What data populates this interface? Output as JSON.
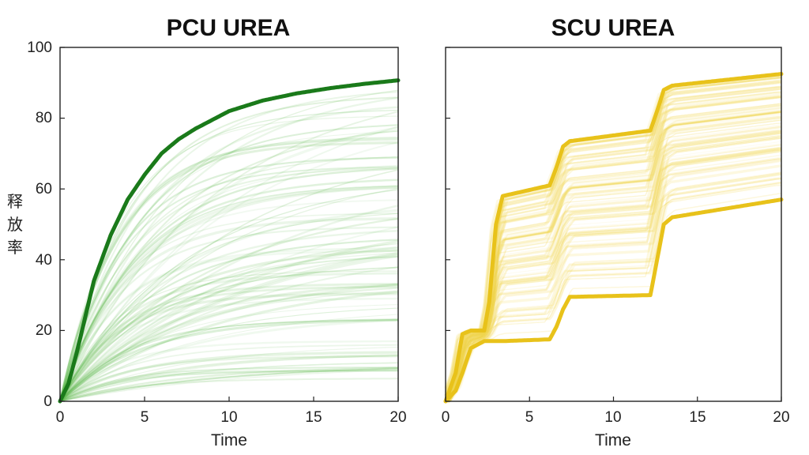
{
  "chart_data": [
    {
      "type": "line",
      "title": "PCU UREA",
      "xlabel": "Time",
      "ylabel": "率放释",
      "xlim": [
        0,
        20
      ],
      "ylim": [
        0,
        100
      ],
      "x_ticks": [
        0,
        5,
        10,
        15,
        20
      ],
      "y_ticks": [
        0,
        20,
        40,
        60,
        80,
        100
      ],
      "grid": false,
      "color": "#1a7a1a",
      "band_color": "#5cb84a",
      "x": [
        0,
        0.5,
        1,
        2,
        3,
        4,
        5,
        6,
        7,
        8,
        10,
        12,
        14,
        16,
        18,
        20
      ],
      "series": [
        {
          "values": [
            0,
            5,
            14,
            34,
            47,
            57,
            64,
            70,
            74,
            77,
            82,
            85,
            87,
            88.5,
            89.7,
            90.7
          ]
        }
      ],
      "band": {
        "count": 90,
        "final_min": 5,
        "final_max": 89
      }
    },
    {
      "type": "line",
      "title": "SCU UREA",
      "xlabel": "Time",
      "ylabel": "",
      "xlim": [
        0,
        20
      ],
      "ylim": [
        0,
        100
      ],
      "x_ticks": [
        0,
        5,
        10,
        15,
        20
      ],
      "y_ticks": [
        0,
        20,
        40,
        60,
        80,
        100
      ],
      "grid": false,
      "color": "#e8c21a",
      "band_color": "#f2d54a",
      "x": [
        0,
        0.6,
        1,
        1.5,
        2.3,
        2.6,
        3,
        3.4,
        6.2,
        6.6,
        7,
        7.4,
        12.2,
        12.6,
        13,
        13.5,
        20
      ],
      "series": [
        {
          "values": [
            0,
            8,
            19,
            20,
            20,
            28,
            50,
            58,
            61,
            66,
            72,
            73.5,
            76.5,
            82,
            88,
            89.2,
            92.5
          ]
        },
        {
          "values": [
            0,
            3,
            8,
            15,
            17,
            17,
            17,
            17,
            17.5,
            21,
            26,
            29.5,
            30,
            40,
            50,
            52,
            57
          ]
        }
      ],
      "band": {
        "count": 90
      }
    }
  ]
}
